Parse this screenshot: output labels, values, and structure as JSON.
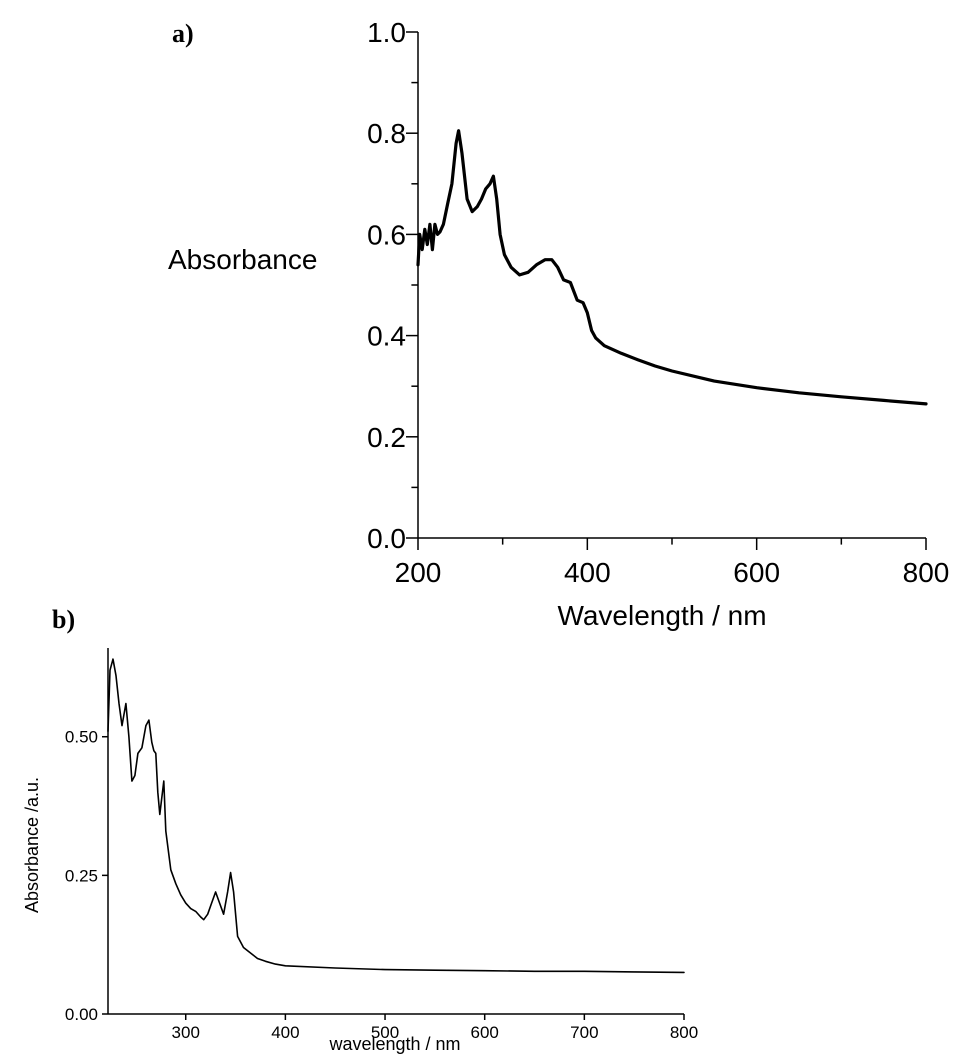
{
  "chart_data": [
    {
      "panel_label": "a)",
      "type": "line",
      "xlabel": "Wavelength / nm",
      "ylabel": "Absorbance",
      "xlim": [
        200,
        800
      ],
      "ylim": [
        0.0,
        1.0
      ],
      "x_ticks": [
        200,
        400,
        600,
        800
      ],
      "x_tick_labels": [
        "200",
        "400",
        "600",
        "800"
      ],
      "y_ticks": [
        0.0,
        0.2,
        0.4,
        0.6,
        0.8,
        1.0
      ],
      "y_tick_labels": [
        "0.0",
        "0.2",
        "0.4",
        "0.6",
        "0.8",
        "1.0"
      ],
      "grid": false,
      "series": [
        {
          "x": [
            200,
            202,
            205,
            208,
            211,
            214,
            217,
            220,
            223,
            226,
            230,
            235,
            240,
            245,
            248,
            252,
            258,
            264,
            270,
            275,
            280,
            285,
            289,
            293,
            297,
            302,
            310,
            320,
            330,
            340,
            350,
            358,
            365,
            372,
            380,
            388,
            395,
            400,
            405,
            410,
            420,
            440,
            460,
            480,
            500,
            550,
            600,
            650,
            700,
            750,
            800
          ],
          "y": [
            0.54,
            0.6,
            0.57,
            0.61,
            0.58,
            0.62,
            0.57,
            0.62,
            0.6,
            0.605,
            0.62,
            0.66,
            0.7,
            0.78,
            0.805,
            0.76,
            0.67,
            0.645,
            0.655,
            0.67,
            0.69,
            0.7,
            0.715,
            0.67,
            0.6,
            0.56,
            0.535,
            0.52,
            0.525,
            0.54,
            0.55,
            0.55,
            0.535,
            0.51,
            0.505,
            0.47,
            0.465,
            0.445,
            0.41,
            0.395,
            0.38,
            0.365,
            0.352,
            0.34,
            0.33,
            0.31,
            0.297,
            0.287,
            0.279,
            0.272,
            0.265
          ]
        }
      ]
    },
    {
      "panel_label": "b)",
      "type": "line",
      "xlabel": "wavelength / nm",
      "ylabel": "Absorbance /a.u.",
      "xlim": [
        222,
        800
      ],
      "ylim": [
        0.0,
        0.66
      ],
      "x_ticks": [
        300,
        400,
        500,
        600,
        700,
        800
      ],
      "x_tick_labels": [
        "300",
        "400",
        "500",
        "600",
        "700",
        "800"
      ],
      "y_ticks": [
        0.0,
        0.25,
        0.5
      ],
      "y_tick_labels": [
        "0.00",
        "0.25",
        "0.50"
      ],
      "grid": false,
      "series": [
        {
          "x": [
            222,
            224,
            227,
            230,
            233,
            236,
            240,
            243,
            246,
            249,
            252,
            256,
            260,
            263,
            266,
            268,
            270,
            272,
            274,
            276,
            278,
            280,
            285,
            290,
            295,
            300,
            305,
            310,
            315,
            318,
            322,
            326,
            330,
            334,
            338,
            342,
            345,
            348,
            352,
            358,
            365,
            372,
            380,
            390,
            400,
            450,
            500,
            550,
            600,
            650,
            700,
            750,
            800
          ],
          "y": [
            0.51,
            0.62,
            0.64,
            0.61,
            0.56,
            0.52,
            0.56,
            0.5,
            0.42,
            0.43,
            0.47,
            0.48,
            0.52,
            0.53,
            0.49,
            0.475,
            0.47,
            0.4,
            0.36,
            0.39,
            0.42,
            0.33,
            0.26,
            0.235,
            0.215,
            0.2,
            0.19,
            0.185,
            0.175,
            0.17,
            0.18,
            0.2,
            0.22,
            0.2,
            0.18,
            0.22,
            0.255,
            0.22,
            0.14,
            0.12,
            0.11,
            0.1,
            0.095,
            0.09,
            0.087,
            0.083,
            0.08,
            0.079,
            0.078,
            0.077,
            0.077,
            0.076,
            0.075
          ]
        }
      ]
    }
  ]
}
